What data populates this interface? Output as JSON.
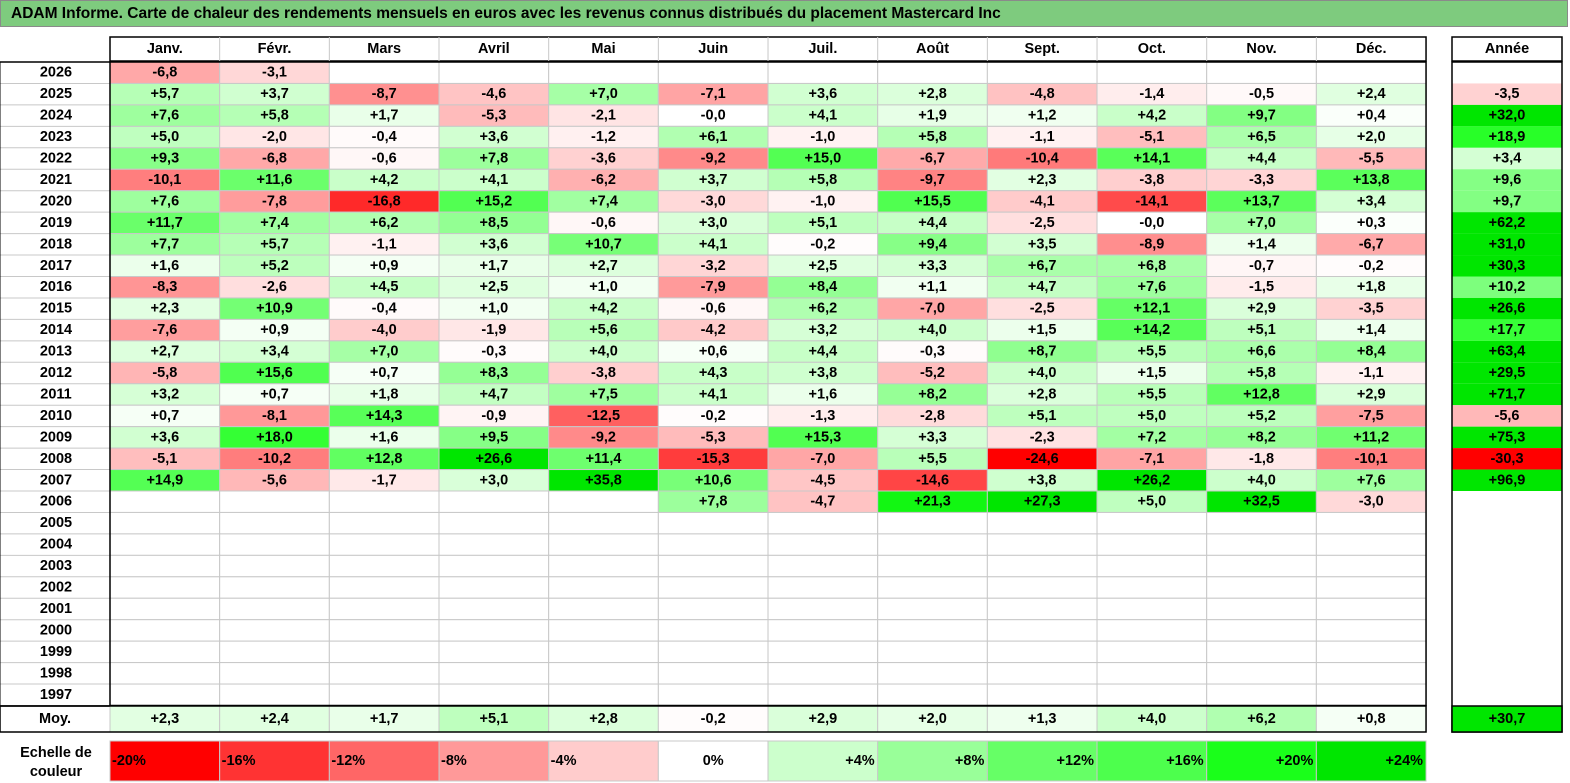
{
  "title": "ADAM Informe. Carte de chaleur des rendements mensuels en euros avec les revenus connus distribués du placement Mastercard Inc",
  "chart_data": {
    "type": "heatmap",
    "months": [
      "Janv.",
      "Févr.",
      "Mars",
      "Avril",
      "Mai",
      "Juin",
      "Juil.",
      "Août",
      "Sept.",
      "Oct.",
      "Nov.",
      "Déc."
    ],
    "year_header": "Année",
    "rows": [
      {
        "year": "2026",
        "values": [
          "-6,8",
          "-3,1",
          "",
          "",
          "",
          "",
          "",
          "",
          "",
          "",
          "",
          ""
        ],
        "annual": ""
      },
      {
        "year": "2025",
        "values": [
          "+5,7",
          "+3,7",
          "-8,7",
          "-4,6",
          "+7,0",
          "-7,1",
          "+3,6",
          "+2,8",
          "-4,8",
          "-1,4",
          "-0,5",
          "+2,4"
        ],
        "annual": "-3,5"
      },
      {
        "year": "2024",
        "values": [
          "+7,6",
          "+5,8",
          "+1,7",
          "-5,3",
          "-2,1",
          "-0,0",
          "+4,1",
          "+1,9",
          "+1,2",
          "+4,2",
          "+9,7",
          "+0,4"
        ],
        "annual": "+32,0"
      },
      {
        "year": "2023",
        "values": [
          "+5,0",
          "-2,0",
          "-0,4",
          "+3,6",
          "-1,2",
          "+6,1",
          "-1,0",
          "+5,8",
          "-1,1",
          "-5,1",
          "+6,5",
          "+2,0"
        ],
        "annual": "+18,9"
      },
      {
        "year": "2022",
        "values": [
          "+9,3",
          "-6,8",
          "-0,6",
          "+7,8",
          "-3,6",
          "-9,2",
          "+15,0",
          "-6,7",
          "-10,4",
          "+14,1",
          "+4,4",
          "-5,5"
        ],
        "annual": "+3,4"
      },
      {
        "year": "2021",
        "values": [
          "-10,1",
          "+11,6",
          "+4,2",
          "+4,1",
          "-6,2",
          "+3,7",
          "+5,8",
          "-9,7",
          "+2,3",
          "-3,8",
          "-3,3",
          "+13,8"
        ],
        "annual": "+9,6"
      },
      {
        "year": "2020",
        "values": [
          "+7,6",
          "-7,8",
          "-16,8",
          "+15,2",
          "+7,4",
          "-3,0",
          "-1,0",
          "+15,5",
          "-4,1",
          "-14,1",
          "+13,7",
          "+3,4"
        ],
        "annual": "+9,7"
      },
      {
        "year": "2019",
        "values": [
          "+11,7",
          "+7,4",
          "+6,2",
          "+8,5",
          "-0,6",
          "+3,0",
          "+5,1",
          "+4,4",
          "-2,5",
          "-0,0",
          "+7,0",
          "+0,3"
        ],
        "annual": "+62,2"
      },
      {
        "year": "2018",
        "values": [
          "+7,7",
          "+5,7",
          "-1,1",
          "+3,6",
          "+10,7",
          "+4,1",
          "-0,2",
          "+9,4",
          "+3,5",
          "-8,9",
          "+1,4",
          "-6,7"
        ],
        "annual": "+31,0"
      },
      {
        "year": "2017",
        "values": [
          "+1,6",
          "+5,2",
          "+0,9",
          "+1,7",
          "+2,7",
          "-3,2",
          "+2,5",
          "+3,3",
          "+6,7",
          "+6,8",
          "-0,7",
          "-0,2"
        ],
        "annual": "+30,3"
      },
      {
        "year": "2016",
        "values": [
          "-8,3",
          "-2,6",
          "+4,5",
          "+2,5",
          "+1,0",
          "-7,9",
          "+8,4",
          "+1,1",
          "+4,7",
          "+7,6",
          "-1,5",
          "+1,8"
        ],
        "annual": "+10,2"
      },
      {
        "year": "2015",
        "values": [
          "+2,3",
          "+10,9",
          "-0,4",
          "+1,0",
          "+4,2",
          "-0,6",
          "+6,2",
          "-7,0",
          "-2,5",
          "+12,1",
          "+2,9",
          "-3,5"
        ],
        "annual": "+26,6"
      },
      {
        "year": "2014",
        "values": [
          "-7,6",
          "+0,9",
          "-4,0",
          "-1,9",
          "+5,6",
          "-4,2",
          "+3,2",
          "+4,0",
          "+1,5",
          "+14,2",
          "+5,1",
          "+1,4"
        ],
        "annual": "+17,7"
      },
      {
        "year": "2013",
        "values": [
          "+2,7",
          "+3,4",
          "+7,0",
          "-0,3",
          "+4,0",
          "+0,6",
          "+4,4",
          "-0,3",
          "+8,7",
          "+5,5",
          "+6,6",
          "+8,4"
        ],
        "annual": "+63,4"
      },
      {
        "year": "2012",
        "values": [
          "-5,8",
          "+15,6",
          "+0,7",
          "+8,3",
          "-3,8",
          "+4,3",
          "+3,8",
          "-5,2",
          "+4,0",
          "+1,5",
          "+5,8",
          "-1,1"
        ],
        "annual": "+29,5"
      },
      {
        "year": "2011",
        "values": [
          "+3,2",
          "+0,7",
          "+1,8",
          "+4,7",
          "+7,5",
          "+4,1",
          "+1,6",
          "+8,2",
          "+2,8",
          "+5,5",
          "+12,8",
          "+2,9"
        ],
        "annual": "+71,7"
      },
      {
        "year": "2010",
        "values": [
          "+0,7",
          "-8,1",
          "+14,3",
          "-0,9",
          "-12,5",
          "-0,2",
          "-1,3",
          "-2,8",
          "+5,1",
          "+5,0",
          "+5,2",
          "-7,5"
        ],
        "annual": "-5,6"
      },
      {
        "year": "2009",
        "values": [
          "+3,6",
          "+18,0",
          "+1,6",
          "+9,5",
          "-9,2",
          "-5,3",
          "+15,3",
          "+3,3",
          "-2,3",
          "+7,2",
          "+8,2",
          "+11,2"
        ],
        "annual": "+75,3"
      },
      {
        "year": "2008",
        "values": [
          "-5,1",
          "-10,2",
          "+12,8",
          "+26,6",
          "+11,4",
          "-15,3",
          "-7,0",
          "+5,5",
          "-24,6",
          "-7,1",
          "-1,8",
          "-10,1"
        ],
        "annual": "-30,3"
      },
      {
        "year": "2007",
        "values": [
          "+14,9",
          "-5,6",
          "-1,7",
          "+3,0",
          "+35,8",
          "+10,6",
          "-4,5",
          "-14,6",
          "+3,8",
          "+26,2",
          "+4,0",
          "+7,6"
        ],
        "annual": "+96,9"
      },
      {
        "year": "2006",
        "values": [
          "",
          "",
          "",
          "",
          "",
          "+7,8",
          "-4,7",
          "+21,3",
          "+27,3",
          "+5,0",
          "+32,5",
          "-3,0"
        ],
        "annual": ""
      },
      {
        "year": "2005",
        "values": [
          "",
          "",
          "",
          "",
          "",
          "",
          "",
          "",
          "",
          "",
          "",
          ""
        ],
        "annual": ""
      },
      {
        "year": "2004",
        "values": [
          "",
          "",
          "",
          "",
          "",
          "",
          "",
          "",
          "",
          "",
          "",
          ""
        ],
        "annual": ""
      },
      {
        "year": "2003",
        "values": [
          "",
          "",
          "",
          "",
          "",
          "",
          "",
          "",
          "",
          "",
          "",
          ""
        ],
        "annual": ""
      },
      {
        "year": "2002",
        "values": [
          "",
          "",
          "",
          "",
          "",
          "",
          "",
          "",
          "",
          "",
          "",
          ""
        ],
        "annual": ""
      },
      {
        "year": "2001",
        "values": [
          "",
          "",
          "",
          "",
          "",
          "",
          "",
          "",
          "",
          "",
          "",
          ""
        ],
        "annual": ""
      },
      {
        "year": "2000",
        "values": [
          "",
          "",
          "",
          "",
          "",
          "",
          "",
          "",
          "",
          "",
          "",
          ""
        ],
        "annual": ""
      },
      {
        "year": "1999",
        "values": [
          "",
          "",
          "",
          "",
          "",
          "",
          "",
          "",
          "",
          "",
          "",
          ""
        ],
        "annual": ""
      },
      {
        "year": "1998",
        "values": [
          "",
          "",
          "",
          "",
          "",
          "",
          "",
          "",
          "",
          "",
          "",
          ""
        ],
        "annual": ""
      },
      {
        "year": "1997",
        "values": [
          "",
          "",
          "",
          "",
          "",
          "",
          "",
          "",
          "",
          "",
          "",
          ""
        ],
        "annual": ""
      }
    ],
    "average": {
      "label": "Moy.",
      "values": [
        "+2,3",
        "+2,4",
        "+1,7",
        "+5,1",
        "+2,8",
        "-0,2",
        "+2,9",
        "+2,0",
        "+1,3",
        "+4,0",
        "+6,2",
        "+0,8"
      ],
      "annual": "+30,7"
    },
    "color_scale": {
      "label": "Echelle de couleur",
      "steps": [
        {
          "label": "-20%",
          "value": -20,
          "color": "#ff0000"
        },
        {
          "label": "-16%",
          "value": -16,
          "color": "#ff3333"
        },
        {
          "label": "-12%",
          "value": -12,
          "color": "#ff6666"
        },
        {
          "label": "-8%",
          "value": -8,
          "color": "#ff9999"
        },
        {
          "label": "-4%",
          "value": -4,
          "color": "#ffcccc"
        },
        {
          "label": "0%",
          "value": 0,
          "color": "#ffffff"
        },
        {
          "label": "+4%",
          "value": 4,
          "color": "#ccffcc"
        },
        {
          "label": "+8%",
          "value": 8,
          "color": "#99ff99"
        },
        {
          "label": "+12%",
          "value": 12,
          "color": "#66ff66"
        },
        {
          "label": "+16%",
          "value": 16,
          "color": "#4dff4d"
        },
        {
          "label": "+20%",
          "value": 20,
          "color": "#1aff1a"
        },
        {
          "label": "+24%",
          "value": 24,
          "color": "#00e600"
        }
      ]
    }
  }
}
